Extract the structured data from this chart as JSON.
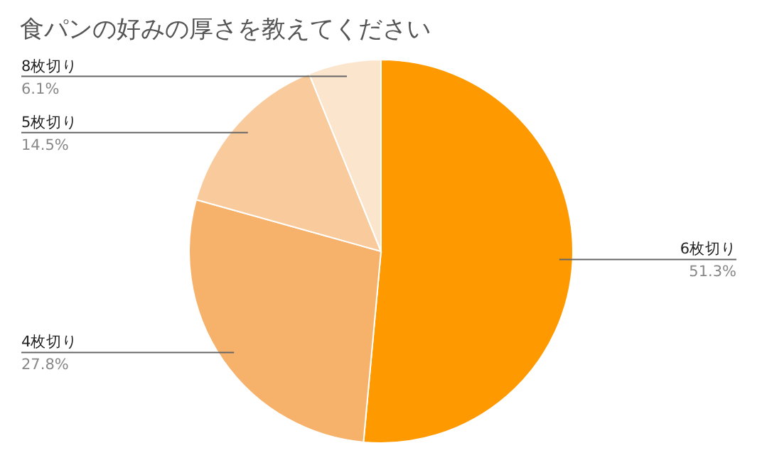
{
  "chart_data": {
    "type": "pie",
    "title": "食パンの好みの厚さを教えてください",
    "categories": [
      "6枚切り",
      "4枚切り",
      "5枚切り",
      "8枚切り"
    ],
    "values": [
      51.3,
      27.8,
      14.5,
      6.1
    ],
    "value_labels": [
      "51.3%",
      "27.8%",
      "14.5%",
      "6.1%"
    ],
    "colors": [
      "#ff9900",
      "#f6b26b",
      "#f9cb9c",
      "#fce5cd"
    ]
  }
}
